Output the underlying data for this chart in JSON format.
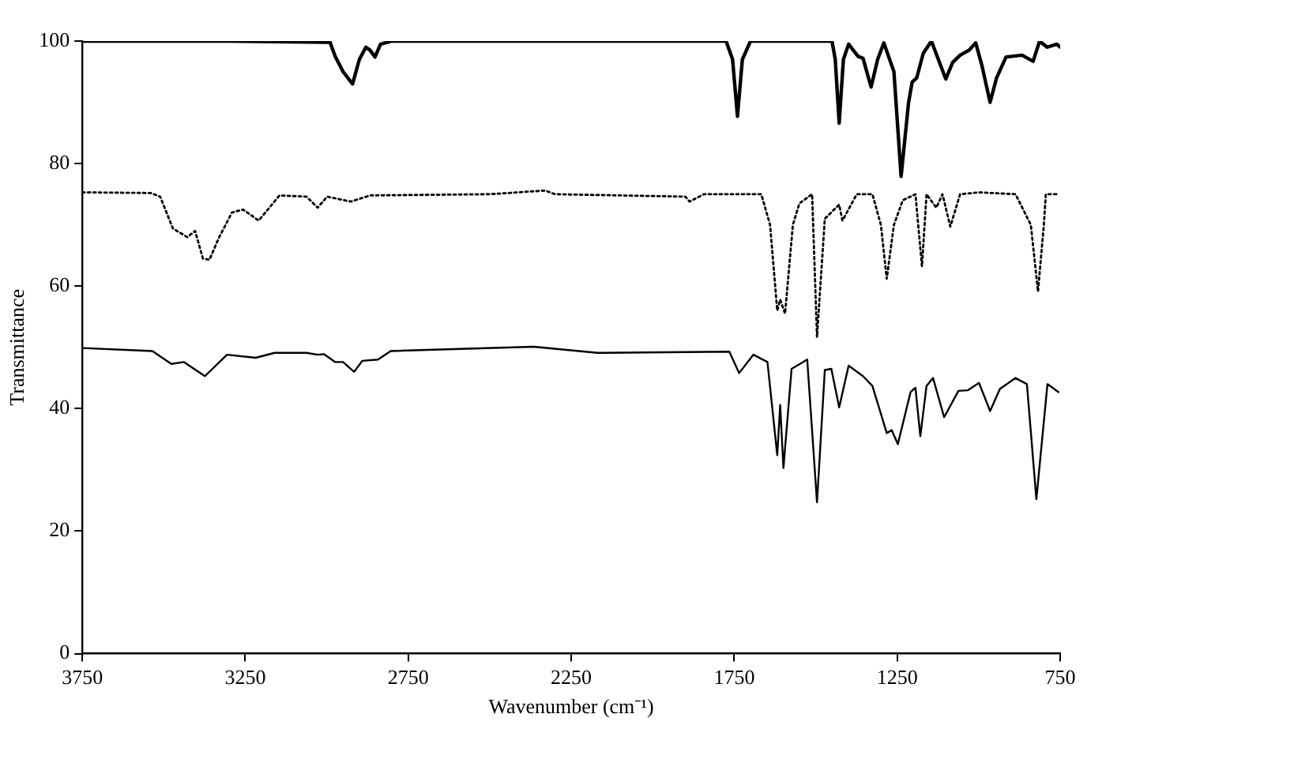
{
  "chart_data": {
    "type": "line",
    "xlabel": "Wavenumber (cm⁻¹)",
    "ylabel": "Transmittance",
    "xlim": [
      3750,
      750
    ],
    "xticks": [
      3750,
      3250,
      2750,
      2250,
      1750,
      1250,
      750
    ],
    "ylim": [
      0,
      100
    ],
    "yticks": [
      0,
      20,
      40,
      60,
      80,
      100
    ],
    "grid": false,
    "legend": false,
    "marker": "none",
    "series": [
      {
        "color": "#000000",
        "line_style": "solid",
        "x": [
          3750,
          3300,
          3000,
          2990,
          2974,
          2950,
          2921,
          2900,
          2880,
          2867,
          2852,
          2835,
          2800,
          2400,
          2000,
          1775,
          1755,
          1740,
          1725,
          1700,
          1450,
          1440,
          1428,
          1415,
          1399,
          1370,
          1355,
          1330,
          1310,
          1291,
          1260,
          1238,
          1215,
          1204,
          1190,
          1170,
          1145,
          1101,
          1080,
          1057,
          1030,
          1009,
          990,
          965,
          945,
          916,
          867,
          833,
          813,
          790,
          760,
          750
        ],
        "values": [
          100,
          100,
          99.8,
          99.8,
          97.5,
          95,
          93,
          97,
          99,
          98.5,
          97.4,
          99.5,
          100,
          100,
          100,
          100,
          97,
          87.7,
          97,
          100,
          100,
          97,
          86.6,
          97,
          99.5,
          97.5,
          97.2,
          92.5,
          97,
          99.7,
          95,
          77.9,
          90,
          93.3,
          94,
          98,
          100,
          93.8,
          96.5,
          97.7,
          98.5,
          99.7,
          96,
          90,
          94,
          97.4,
          97.7,
          96.7,
          100,
          99,
          99.5,
          99
        ]
      },
      {
        "color": "#000000",
        "line_style": "dotted",
        "x": [
          3750,
          3540,
          3511,
          3472,
          3428,
          3404,
          3380,
          3360,
          3330,
          3291,
          3257,
          3209,
          3145,
          3062,
          3028,
          2999,
          2926,
          2867,
          2500,
          2330,
          2300,
          1900,
          1887,
          1843,
          1667,
          1640,
          1618,
          1609,
          1594,
          1570,
          1550,
          1511,
          1496,
          1472,
          1428,
          1418,
          1374,
          1326,
          1300,
          1282,
          1260,
          1233,
          1194,
          1174,
          1160,
          1130,
          1111,
          1087,
          1057,
          999,
          887,
          840,
          818,
          800,
          794,
          755
        ],
        "values": [
          75.3,
          75.2,
          74.6,
          69.4,
          68,
          69,
          64.5,
          64.3,
          68,
          72,
          72.5,
          70.7,
          74.8,
          74.6,
          72.8,
          74.6,
          73.8,
          74.8,
          75,
          75.6,
          75,
          74.6,
          73.8,
          75,
          75,
          70,
          56,
          57.8,
          55.5,
          70,
          73.5,
          75,
          51.7,
          71,
          73.3,
          70.7,
          75,
          75,
          70,
          61.2,
          70,
          74,
          75,
          63.2,
          75,
          72.8,
          75,
          69.7,
          75,
          75.3,
          75,
          70,
          59.1,
          70,
          75,
          75
        ]
      },
      {
        "color": "#000000",
        "line_style": "solid",
        "x": [
          3750,
          3535,
          3477,
          3438,
          3374,
          3306,
          3218,
          3160,
          3062,
          3028,
          3009,
          2974,
          2950,
          2916,
          2891,
          2843,
          2804,
          2365,
          2170,
          1765,
          1735,
          1691,
          1648,
          1618,
          1609,
          1599,
          1574,
          1526,
          1496,
          1472,
          1452,
          1428,
          1399,
          1355,
          1326,
          1282,
          1267,
          1248,
          1209,
          1194,
          1179,
          1160,
          1140,
          1106,
          1062,
          1033,
          999,
          965,
          935,
          887,
          852,
          823,
          789,
          755
        ],
        "values": [
          49.9,
          49.4,
          47.3,
          47.6,
          45.3,
          48.8,
          48.3,
          49.1,
          49.1,
          48.8,
          48.9,
          47.6,
          47.6,
          46,
          47.8,
          48,
          49.4,
          50.1,
          49.1,
          49.3,
          45.8,
          48.8,
          47.6,
          32.4,
          40.6,
          30.3,
          46.5,
          48,
          24.7,
          46.3,
          46.5,
          40.2,
          47,
          45.3,
          43.7,
          36,
          36.5,
          34.2,
          42.7,
          43.4,
          35.5,
          43.7,
          45,
          38.6,
          42.9,
          43,
          44.2,
          39.6,
          43.2,
          45,
          44,
          25.2,
          44,
          42.7
        ]
      }
    ]
  }
}
